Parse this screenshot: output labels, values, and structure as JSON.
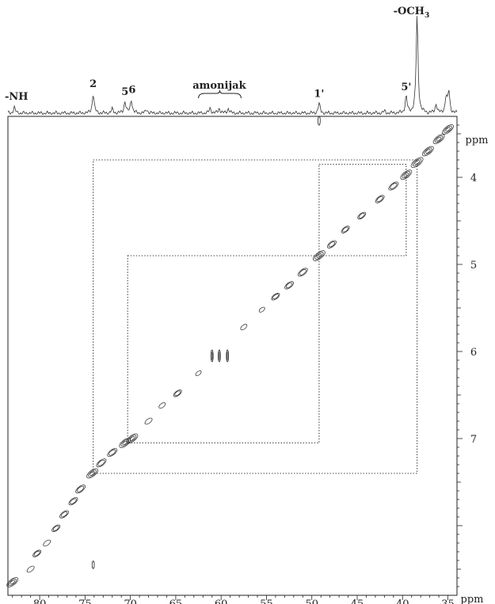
{
  "chart_data": {
    "type": "heatmap",
    "title": "",
    "x_axis": {
      "label": "ppm",
      "range": [
        83.5,
        34.0
      ],
      "ticks": [
        80,
        75,
        70,
        65,
        60,
        55,
        50,
        45,
        40,
        35
      ],
      "tick_labels": [
        "80",
        "75",
        "70",
        "65",
        "60",
        "55",
        "50",
        "45",
        "40",
        "35"
      ]
    },
    "y_axis": {
      "label": "ppm",
      "range": [
        3.3,
        8.8
      ],
      "ticks": [
        4,
        5,
        6,
        7
      ],
      "tick_labels": [
        "4",
        "5",
        "6",
        "7"
      ]
    },
    "top_spectrum": {
      "labels": [
        {
          "text": "-NH",
          "ppm": 82.8
        },
        {
          "text": "2",
          "ppm": 74.1
        },
        {
          "text": "5",
          "ppm": 70.6
        },
        {
          "text": "6",
          "ppm": 69.8
        },
        {
          "text": "amonijak",
          "ppm": 60.2
        },
        {
          "text": "1'",
          "ppm": 49.2
        },
        {
          "text": "5'",
          "ppm": 39.6
        },
        {
          "text": "-OCH3",
          "ppm": 38.4
        }
      ],
      "peaks": [
        {
          "ppm": 82.8,
          "height": 0.06
        },
        {
          "ppm": 74.1,
          "height": 0.2
        },
        {
          "ppm": 72.0,
          "height": 0.04
        },
        {
          "ppm": 70.6,
          "height": 0.12
        },
        {
          "ppm": 69.9,
          "height": 0.14
        },
        {
          "ppm": 68.2,
          "height": 0.04
        },
        {
          "ppm": 61.2,
          "height": 0.05
        },
        {
          "ppm": 60.2,
          "height": 0.05
        },
        {
          "ppm": 59.2,
          "height": 0.05
        },
        {
          "ppm": 49.2,
          "height": 0.1
        },
        {
          "ppm": 42.0,
          "height": 0.02
        },
        {
          "ppm": 39.6,
          "height": 0.17
        },
        {
          "ppm": 38.4,
          "height": 1.0
        },
        {
          "ppm": 36.3,
          "height": 0.09
        },
        {
          "ppm": 35.2,
          "height": 0.16
        },
        {
          "ppm": 34.9,
          "height": 0.22
        }
      ]
    },
    "diagonal_peaks": [
      {
        "x": 83.0,
        "y": 8.65,
        "intensity": 0.9
      },
      {
        "x": 81.0,
        "y": 8.5,
        "intensity": 0.4
      },
      {
        "x": 80.3,
        "y": 8.32,
        "intensity": 0.5
      },
      {
        "x": 79.2,
        "y": 8.2,
        "intensity": 0.4
      },
      {
        "x": 78.2,
        "y": 8.03,
        "intensity": 0.5
      },
      {
        "x": 77.3,
        "y": 7.87,
        "intensity": 0.6
      },
      {
        "x": 76.3,
        "y": 7.72,
        "intensity": 0.6
      },
      {
        "x": 75.5,
        "y": 7.58,
        "intensity": 0.7
      },
      {
        "x": 74.2,
        "y": 7.4,
        "intensity": 0.9
      },
      {
        "x": 73.2,
        "y": 7.28,
        "intensity": 0.7
      },
      {
        "x": 72.0,
        "y": 7.16,
        "intensity": 0.7
      },
      {
        "x": 70.6,
        "y": 7.05,
        "intensity": 0.9
      },
      {
        "x": 69.8,
        "y": 7.0,
        "intensity": 0.9
      },
      {
        "x": 68.0,
        "y": 6.8,
        "intensity": 0.4
      },
      {
        "x": 66.5,
        "y": 6.62,
        "intensity": 0.3
      },
      {
        "x": 64.8,
        "y": 6.48,
        "intensity": 0.5
      },
      {
        "x": 62.5,
        "y": 6.25,
        "intensity": 0.2
      },
      {
        "x": 57.5,
        "y": 5.72,
        "intensity": 0.3
      },
      {
        "x": 55.5,
        "y": 5.52,
        "intensity": 0.2
      },
      {
        "x": 54.0,
        "y": 5.37,
        "intensity": 0.5
      },
      {
        "x": 52.5,
        "y": 5.24,
        "intensity": 0.6
      },
      {
        "x": 51.0,
        "y": 5.09,
        "intensity": 0.7
      },
      {
        "x": 49.2,
        "y": 4.9,
        "intensity": 1.0
      },
      {
        "x": 47.8,
        "y": 4.77,
        "intensity": 0.6
      },
      {
        "x": 46.3,
        "y": 4.6,
        "intensity": 0.5
      },
      {
        "x": 44.5,
        "y": 4.44,
        "intensity": 0.5
      },
      {
        "x": 42.5,
        "y": 4.25,
        "intensity": 0.6
      },
      {
        "x": 41.0,
        "y": 4.1,
        "intensity": 0.7
      },
      {
        "x": 39.6,
        "y": 3.97,
        "intensity": 0.9
      },
      {
        "x": 38.4,
        "y": 3.83,
        "intensity": 1.0
      },
      {
        "x": 37.2,
        "y": 3.7,
        "intensity": 0.9
      },
      {
        "x": 36.0,
        "y": 3.56,
        "intensity": 0.9
      },
      {
        "x": 35.0,
        "y": 3.45,
        "intensity": 0.9
      }
    ],
    "cross_peaks": [
      {
        "x": 61.0,
        "y": 6.05,
        "intensity": 0.5
      },
      {
        "x": 60.2,
        "y": 6.05,
        "intensity": 0.5
      },
      {
        "x": 59.3,
        "y": 6.05,
        "intensity": 0.5
      },
      {
        "x": 49.2,
        "y": 3.35,
        "intensity": 0.3
      },
      {
        "x": 74.1,
        "y": 8.45,
        "intensity": 0.2
      }
    ],
    "correlations": [
      {
        "x1": 74.1,
        "x2": 38.4,
        "y1": 3.8,
        "y2": 7.4
      },
      {
        "x1": 70.3,
        "x2": 49.2,
        "y1": 4.9,
        "y2": 7.05
      },
      {
        "x1": 49.2,
        "x2": 39.6,
        "y1": 3.85,
        "y2": 4.9
      }
    ],
    "grid": false,
    "legend": "none"
  }
}
